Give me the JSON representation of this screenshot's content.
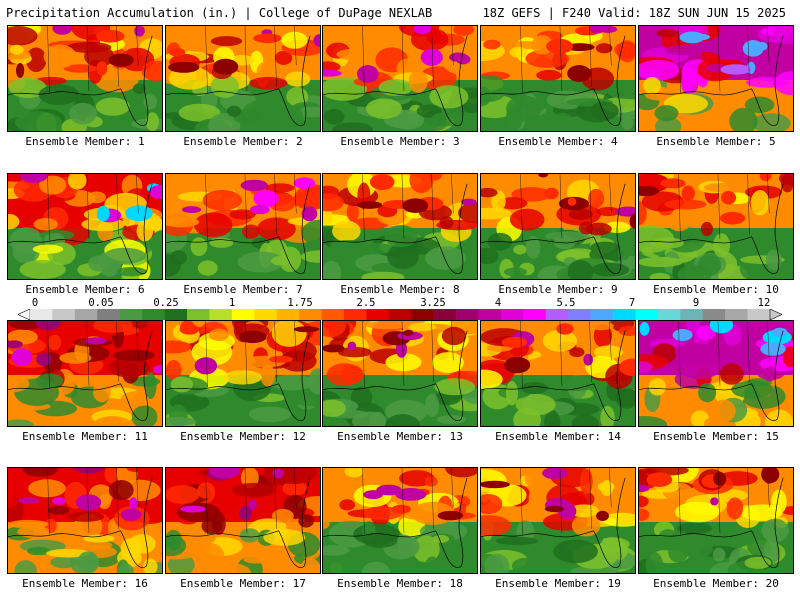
{
  "header": {
    "title_left": "Precipitation Accumulation (in.) | College of DuPage NEXLAB",
    "title_right": "18Z GEFS | F240 Valid: 18Z SUN JUN 15 2025"
  },
  "colorbar": {
    "tick_labels": [
      "0",
      "0.05",
      "0.25",
      "1",
      "1.75",
      "2.5",
      "3.25",
      "4",
      "5.5",
      "7",
      "9",
      "12"
    ],
    "colors": [
      "#e8e8e8",
      "#c8c8c8",
      "#a6a6a6",
      "#7f7f7f",
      "#4b9a43",
      "#2f8a2c",
      "#1f6f1f",
      "#7dc12a",
      "#b6e02a",
      "#ffff00",
      "#ffd800",
      "#ffb300",
      "#ff8c00",
      "#ff5a00",
      "#ff2a00",
      "#e60000",
      "#bb0000",
      "#8c0000",
      "#8b0038",
      "#a0006e",
      "#c000a0",
      "#e000d8",
      "#ff00ff",
      "#b45cff",
      "#7f7fff",
      "#4fa8ff",
      "#00d9ff",
      "#00ffff",
      "#66d8d8",
      "#6fb4b4",
      "#8a8a8a",
      "#a8a8a8",
      "#c8c8c8"
    ]
  },
  "members": [
    {
      "label": "Ensemble Member: 1",
      "theme": "mixed"
    },
    {
      "label": "Ensemble Member: 2",
      "theme": "mixed"
    },
    {
      "label": "Ensemble Member: 3",
      "theme": "northwet"
    },
    {
      "label": "Ensemble Member: 4",
      "theme": "mixed"
    },
    {
      "label": "Ensemble Member: 5",
      "theme": "extreme"
    },
    {
      "label": "Ensemble Member: 6",
      "theme": "westwet"
    },
    {
      "label": "Ensemble Member: 7",
      "theme": "northwet"
    },
    {
      "label": "Ensemble Member: 8",
      "theme": "mixed"
    },
    {
      "label": "Ensemble Member: 9",
      "theme": "mixed"
    },
    {
      "label": "Ensemble Member: 10",
      "theme": "mixed"
    },
    {
      "label": "Ensemble Member: 11",
      "theme": "wet"
    },
    {
      "label": "Ensemble Member: 12",
      "theme": "mixed"
    },
    {
      "label": "Ensemble Member: 13",
      "theme": "mixed"
    },
    {
      "label": "Ensemble Member: 14",
      "theme": "mixed"
    },
    {
      "label": "Ensemble Member: 15",
      "theme": "extreme"
    },
    {
      "label": "Ensemble Member: 16",
      "theme": "wet"
    },
    {
      "label": "Ensemble Member: 17",
      "theme": "wet"
    },
    {
      "label": "Ensemble Member: 18",
      "theme": "mixed"
    },
    {
      "label": "Ensemble Member: 19",
      "theme": "mixed"
    },
    {
      "label": "Ensemble Member: 20",
      "theme": "mixed"
    }
  ]
}
